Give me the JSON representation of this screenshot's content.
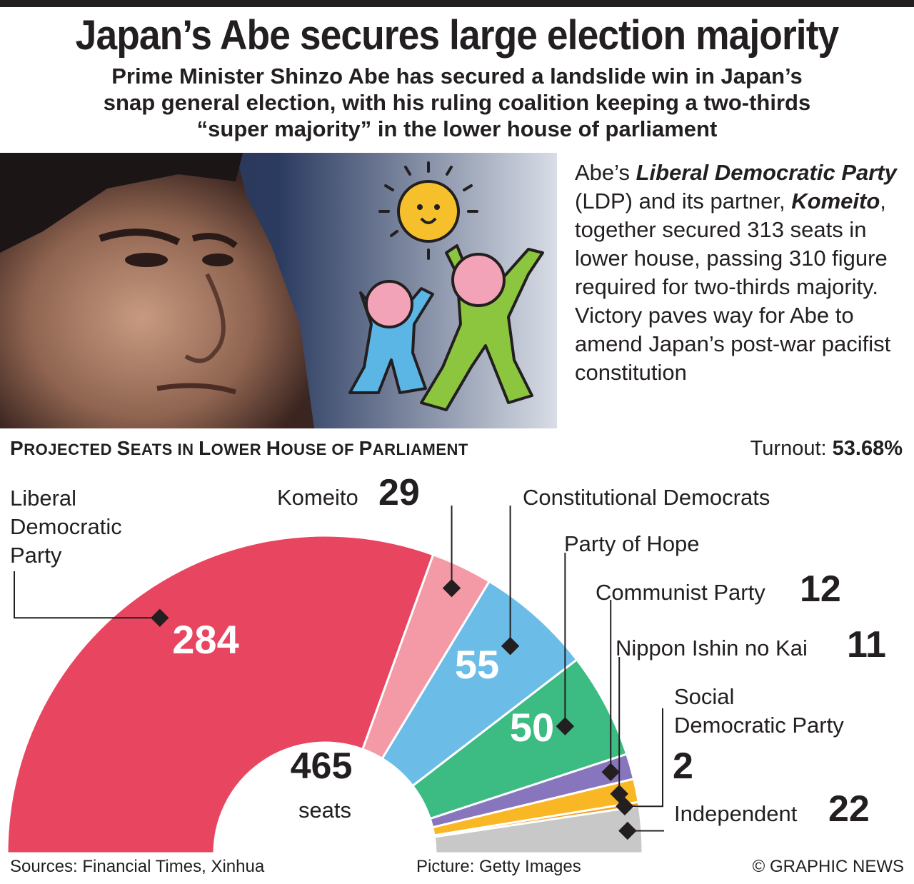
{
  "headline": "Japan’s Abe secures large election majority",
  "subtitle_lines": [
    "Prime Minister Shinzo Abe has secured a landslide win in Japan’s",
    "snap general election, with his ruling coalition keeping a two-thirds",
    "“super majority” in the lower house of parliament"
  ],
  "blurb": {
    "p1": "Abe’s ",
    "ldp": "Liberal Democratic Party",
    "p2": " (LDP) and its partner, ",
    "komeito": "Komeito",
    "p3": ", together secured 313 seats in lower house, passing 310 figure required for two-thirds majority. Victory paves way for Abe to amend Japan’s post-war pacifist constitution"
  },
  "section": {
    "title_P": "P",
    "title_rest1": "ROJECTED ",
    "title_S": "S",
    "title_rest2": "EATS IN ",
    "title_L": "L",
    "title_rest3": "OWER ",
    "title_H": "H",
    "title_rest4": "OUSE OF ",
    "title_P2": "P",
    "title_rest5": "ARLIAMENT"
  },
  "turnout": {
    "label": "Turnout: ",
    "value": "53.68%"
  },
  "total": {
    "value": "465",
    "unit": "seats"
  },
  "footer": {
    "sources": "Sources: Financial Times, Xinhua",
    "picture": "Picture: Getty Images",
    "credit": "© GRAPHIC NEWS"
  },
  "colors": {
    "ldp": "#e84560",
    "komeito": "#f49aa6",
    "cdp": "#6bbde8",
    "hope": "#3cbb82",
    "jcp": "#8776be",
    "ishin": "#f9b726",
    "sdp": "#f4a024",
    "ind": "#c8c8c8"
  },
  "chart_data": {
    "type": "pie",
    "subtype": "semicircle parliament",
    "title": "Projected Seats in Lower House of Parliament",
    "total": 465,
    "series": [
      {
        "name": "Liberal Democratic Party",
        "value": 284
      },
      {
        "name": "Komeito",
        "value": 29
      },
      {
        "name": "Constitutional Democrats",
        "value": 55
      },
      {
        "name": "Party of Hope",
        "value": 50
      },
      {
        "name": "Communist Party",
        "value": 12
      },
      {
        "name": "Nippon Ishin no Kai",
        "value": 11
      },
      {
        "name": "Social Democratic Party",
        "value": 2
      },
      {
        "name": "Independent",
        "value": 22
      }
    ]
  }
}
